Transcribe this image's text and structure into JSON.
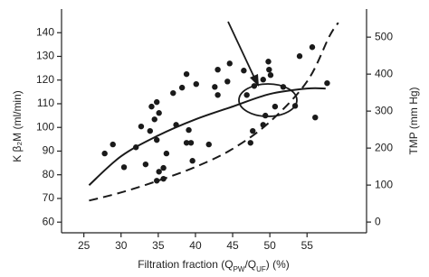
{
  "chart_data": {
    "type": "scatter",
    "xlabel": [
      "Filtration fraction (Q",
      "PW",
      "/Q",
      "UF",
      ") (%)"
    ],
    "ylabel": "K β₂M (ml/min)",
    "y2label": "TMP (mm Hg)",
    "xlim": [
      22,
      63
    ],
    "ylim": [
      55.5,
      150
    ],
    "y2lim": [
      -29,
      576
    ],
    "xticks": [
      25,
      30,
      35,
      40,
      45,
      50,
      55
    ],
    "yticks": [
      60,
      70,
      80,
      90,
      100,
      110,
      120,
      130,
      140
    ],
    "y2ticks": [
      0,
      100,
      200,
      300,
      400,
      500
    ],
    "series": [
      {
        "type": "scatter",
        "color": "#1a1a1a",
        "x": [
          27.8,
          28.9,
          30.4,
          32.0,
          32.7,
          33.3,
          33.9,
          34.1,
          34.8,
          34.5,
          35.1,
          34.8,
          35.1,
          34.8,
          35.7,
          35.7,
          36.1,
          37.0,
          37.4,
          38.2,
          38.8,
          38.8,
          39.1,
          39.6,
          39.4,
          40.1,
          41.8,
          42.6,
          43.0,
          43.0,
          44.3,
          44.6,
          46.5,
          46.9,
          47.9,
          49.1,
          49.4,
          49.8,
          49.9,
          50.1,
          49.1,
          47.7,
          47.4,
          50.7,
          51.8,
          53.4,
          54.0,
          55.7,
          56.1,
          57.7
        ],
        "values": [
          89,
          92.8,
          83.2,
          91.6,
          100.4,
          84.4,
          98.5,
          108.8,
          110.7,
          103.4,
          106.1,
          94.7,
          81.3,
          77.5,
          82.9,
          78.3,
          89,
          114.5,
          101.1,
          116.8,
          122.5,
          93.5,
          98.9,
          85.9,
          93.5,
          118.3,
          92.8,
          117.1,
          124.4,
          113.7,
          119.4,
          127,
          124,
          113.7,
          117.5,
          120.2,
          105,
          127.8,
          124.4,
          122.1,
          101.1,
          98.5,
          93.5,
          108.8,
          117.1,
          109.1,
          130.1,
          133.9,
          104.2,
          118.7
        ]
      },
      {
        "type": "line",
        "color": "#1a1a1a",
        "dash": false,
        "x": [
          25.7,
          30,
          35,
          40,
          45,
          50,
          55,
          57.5
        ],
        "values": [
          75.6,
          87.8,
          96.6,
          103.4,
          108.8,
          114.1,
          116.4,
          116.4
        ]
      },
      {
        "type": "line",
        "color": "#1a1a1a",
        "dash": true,
        "axis": "y2",
        "x": [
          25.7,
          30,
          35,
          40,
          45,
          50,
          55,
          58,
          59.2
        ],
        "values": [
          58,
          80,
          112,
          149,
          198,
          271,
          380,
          502,
          539
        ]
      }
    ]
  }
}
